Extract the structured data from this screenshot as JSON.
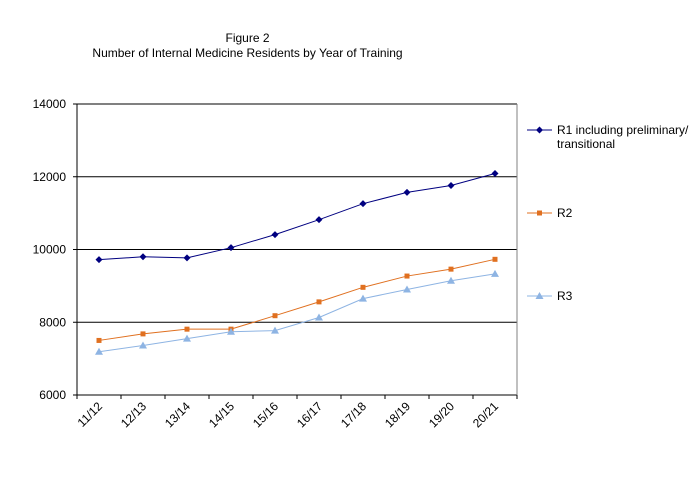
{
  "chart_data": {
    "type": "line",
    "title": "Figure 2",
    "subtitle": "Number of Internal Medicine Residents by Year of Training",
    "categories": [
      "11/12",
      "12/13",
      "13/14",
      "14/15",
      "15/16",
      "16/17",
      "17/18",
      "18/19",
      "19/20",
      "20/21"
    ],
    "ylim": [
      6000,
      14000
    ],
    "yticks": [
      6000,
      8000,
      10000,
      12000,
      14000
    ],
    "ytick_labels": [
      "6000",
      "8000",
      "10000",
      "12000",
      "14000"
    ],
    "grid": "horizontal major gridlines",
    "legend_position": "right",
    "series": [
      {
        "name": "R1 including preliminary/ transitional",
        "legend_lines": [
          "R1 including preliminary/",
          "transitional"
        ],
        "color": "#000080",
        "marker": "diamond",
        "values": [
          9720,
          9800,
          9770,
          10050,
          10410,
          10820,
          11260,
          11570,
          11760,
          12090
        ]
      },
      {
        "name": "R2",
        "legend_lines": [
          "R2"
        ],
        "color": "#E07020",
        "marker": "square",
        "values": [
          7500,
          7680,
          7810,
          7810,
          8180,
          8560,
          8960,
          9270,
          9460,
          9730
        ]
      },
      {
        "name": "R3",
        "legend_lines": [
          "R3"
        ],
        "color": "#8EB4E3",
        "marker": "triangle",
        "values": [
          7190,
          7360,
          7550,
          7740,
          7770,
          8130,
          8650,
          8900,
          9140,
          9330
        ]
      }
    ]
  }
}
